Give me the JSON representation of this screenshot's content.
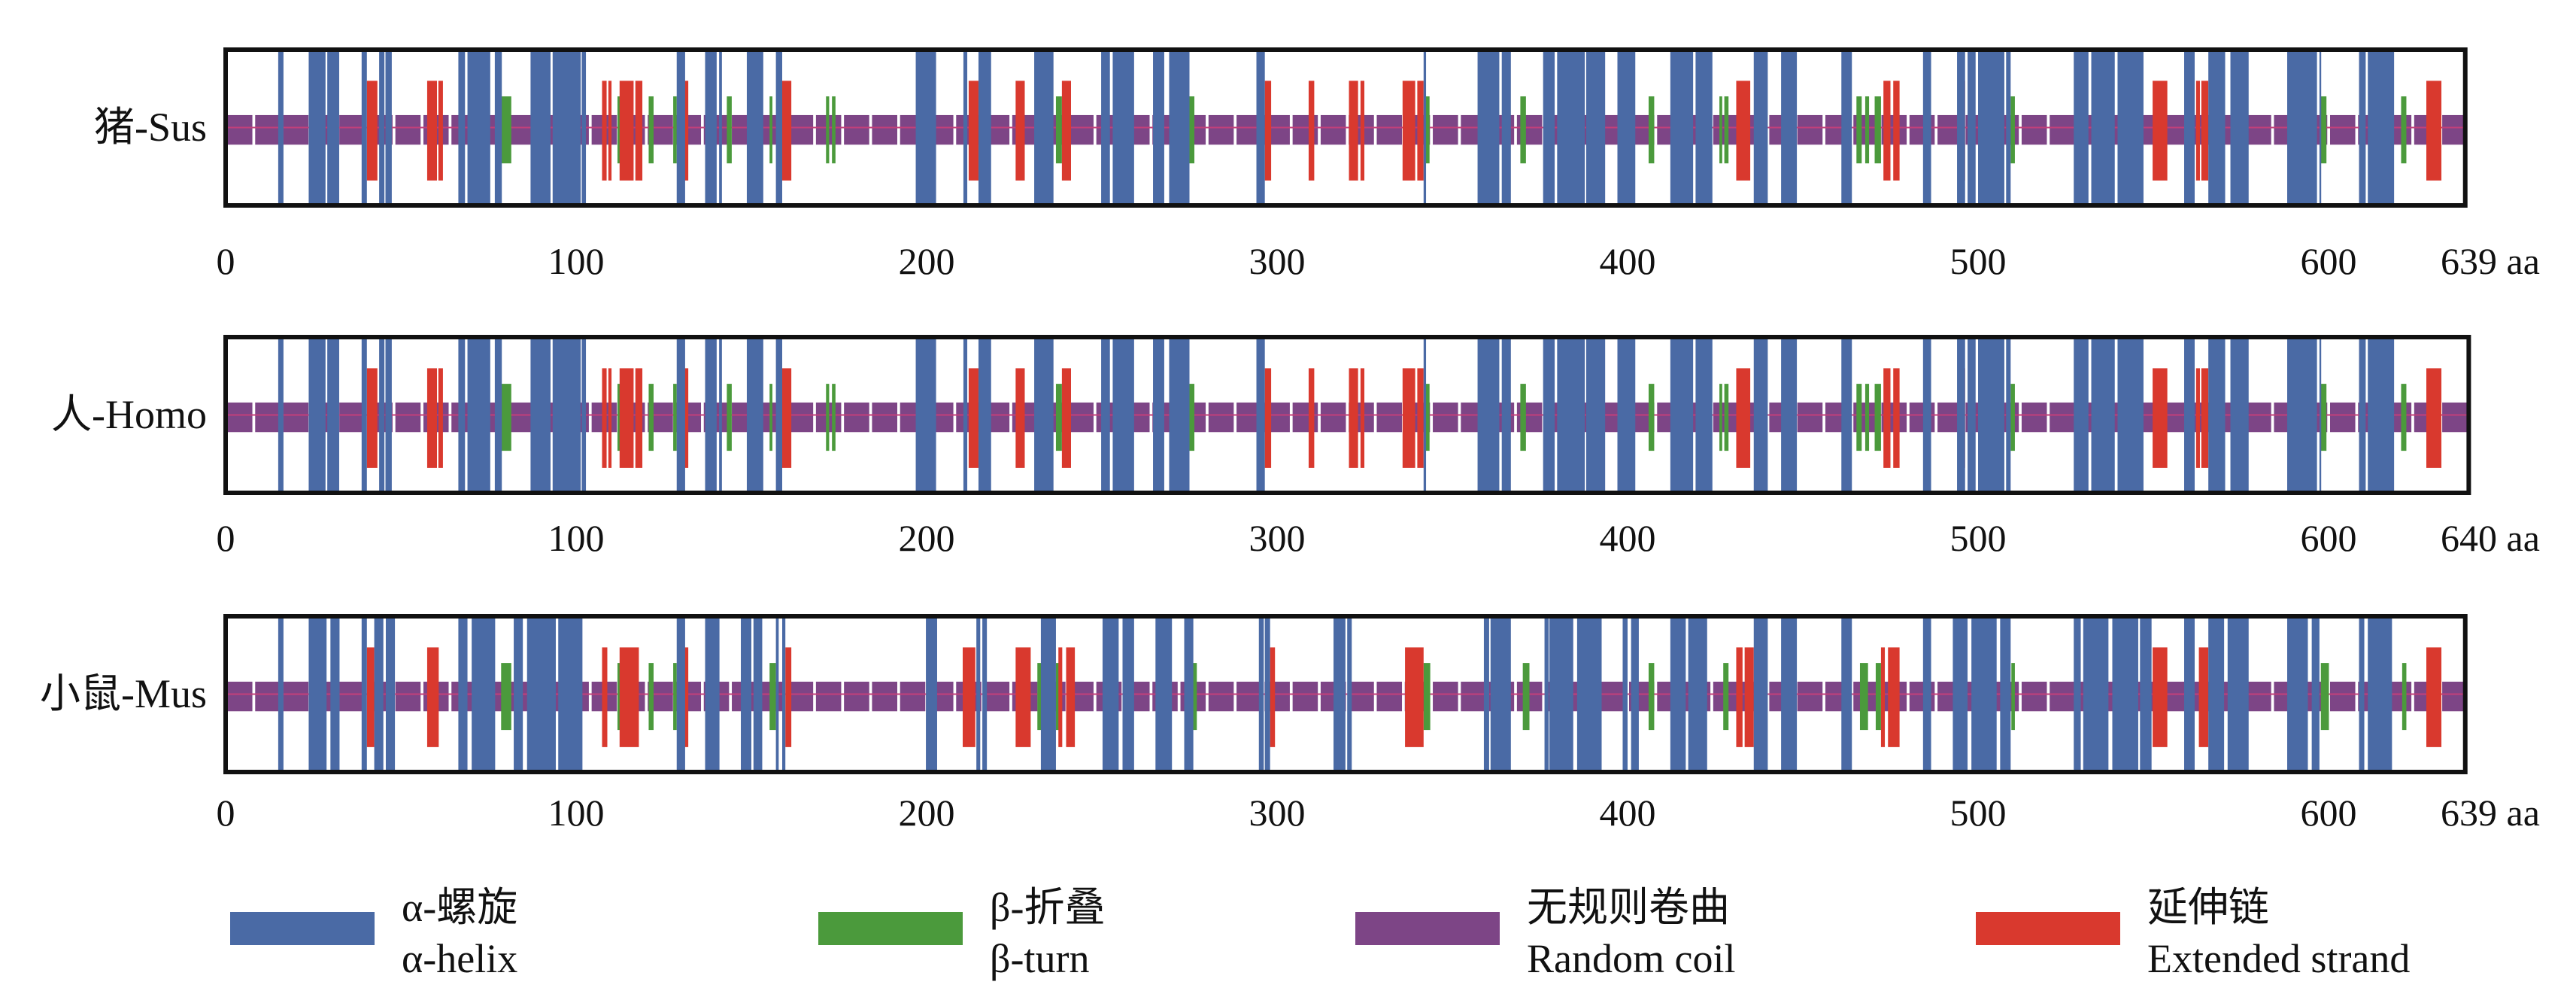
{
  "colors": {
    "helix": "#4a6aa5",
    "turn": "#4b9a3c",
    "coil": "#7d4586",
    "strand": "#d9392e",
    "centerline": "#c2407a",
    "border": "#111111"
  },
  "ticks": [
    0,
    100,
    200,
    300,
    400,
    500,
    600
  ],
  "tick_labels": [
    "0",
    "100",
    "200",
    "300",
    "400",
    "500",
    "600"
  ],
  "tracks": [
    {
      "label": "猪-Sus",
      "length": 639,
      "length_label": "639 aa",
      "helix": [
        [
          15,
          16.5
        ],
        [
          23.7,
          28.5
        ],
        [
          29,
          32.4
        ],
        [
          38.8,
          40.3
        ],
        [
          43.8,
          45.3
        ],
        [
          45.6,
          47.4
        ],
        [
          66.4,
          68.3
        ],
        [
          69,
          75.5
        ],
        [
          76.8,
          78.8
        ],
        [
          87,
          92.7
        ],
        [
          93.3,
          101.3
        ],
        [
          101.6,
          102.8
        ],
        [
          128.7,
          131.1
        ],
        [
          136.8,
          140.1
        ],
        [
          140.8,
          141.6
        ],
        [
          148.7,
          153.4
        ],
        [
          157,
          158.8
        ],
        [
          196.9,
          202.7
        ],
        [
          210.5,
          211.6
        ],
        [
          214.8,
          218.4
        ],
        [
          230.7,
          236.2
        ],
        [
          249.8,
          252.3
        ],
        [
          253.1,
          259.2
        ],
        [
          264.6,
          267.8
        ],
        [
          269.2,
          275
        ],
        [
          294.1,
          296.5
        ],
        [
          341.8,
          342.5
        ],
        [
          357.2,
          363.4
        ],
        [
          364.1,
          366.7
        ],
        [
          375.9,
          379.2
        ],
        [
          379.9,
          387.8
        ],
        [
          388.2,
          393.6
        ],
        [
          397.1,
          402.2
        ],
        [
          412.2,
          418.7
        ],
        [
          419.4,
          424.2
        ],
        [
          436,
          440
        ],
        [
          443.8,
          448.3
        ],
        [
          461,
          464
        ],
        [
          484.3,
          486.6
        ],
        [
          494,
          496.3
        ],
        [
          497,
          499.3
        ],
        [
          500,
          507.5
        ],
        [
          508,
          509.3
        ],
        [
          527.3,
          531.5
        ],
        [
          532.3,
          539
        ],
        [
          539.8,
          547.2
        ],
        [
          558.8,
          561.8
        ],
        [
          565.7,
          570.5
        ],
        [
          572,
          577.2
        ],
        [
          588.2,
          596.7
        ],
        [
          597.4,
          597.9
        ],
        [
          608.7,
          610.6
        ],
        [
          611.2,
          618.7
        ]
      ],
      "strand": [
        [
          40.3,
          43.3
        ],
        [
          57.5,
          60.3
        ],
        [
          60.7,
          62
        ],
        [
          107.4,
          108.7
        ],
        [
          109.2,
          110.1
        ],
        [
          112.4,
          116.4
        ],
        [
          116.9,
          118.9
        ],
        [
          131,
          132
        ],
        [
          158.8,
          161.4
        ],
        [
          212,
          214.8
        ],
        [
          225.4,
          228
        ],
        [
          238.6,
          241.2
        ],
        [
          296.5,
          298.3
        ],
        [
          309,
          310.6
        ],
        [
          320.5,
          323.1
        ],
        [
          323.8,
          324.9
        ],
        [
          335.8,
          339.4
        ],
        [
          340,
          341.8
        ],
        [
          431,
          435
        ],
        [
          473,
          475
        ],
        [
          475.8,
          477.6
        ],
        [
          494.3,
          496.3
        ],
        [
          549.8,
          554
        ],
        [
          562.2,
          563.3
        ],
        [
          563.7,
          565.7
        ],
        [
          627.9,
          632.2
        ]
      ],
      "turn": [
        [
          78.6,
          81.5
        ],
        [
          111.8,
          112.9
        ],
        [
          120.7,
          122.1
        ],
        [
          127.7,
          128.7
        ],
        [
          143,
          144.4
        ],
        [
          155.2,
          156
        ],
        [
          171.3,
          172.2
        ],
        [
          173,
          174
        ],
        [
          236.9,
          238.6
        ],
        [
          275,
          276.4
        ],
        [
          342,
          343.5
        ],
        [
          369.4,
          371
        ],
        [
          406,
          407.6
        ],
        [
          426.2,
          427
        ],
        [
          427.6,
          428.8
        ],
        [
          465.3,
          466.8
        ],
        [
          467.8,
          468.9
        ],
        [
          470.5,
          472.3
        ],
        [
          509.3,
          510.5
        ],
        [
          597.8,
          599.4
        ],
        [
          620.7,
          622.2
        ]
      ]
    },
    {
      "label": "人-Homo",
      "length": 640,
      "length_label": "640 aa",
      "helix": [
        [
          15,
          16.5
        ],
        [
          23.7,
          28.5
        ],
        [
          29,
          32.4
        ],
        [
          38.8,
          40.3
        ],
        [
          43.8,
          45.3
        ],
        [
          45.6,
          47.4
        ],
        [
          66.4,
          68.3
        ],
        [
          69,
          75.5
        ],
        [
          76.8,
          78.8
        ],
        [
          87,
          92.7
        ],
        [
          93.3,
          101.3
        ],
        [
          101.6,
          102.8
        ],
        [
          128.7,
          131.1
        ],
        [
          136.8,
          140.1
        ],
        [
          140.8,
          141.6
        ],
        [
          148.7,
          153.4
        ],
        [
          157,
          158.8
        ],
        [
          196.9,
          202.7
        ],
        [
          210.5,
          211.6
        ],
        [
          214.8,
          218.4
        ],
        [
          230.7,
          236.2
        ],
        [
          249.8,
          252.3
        ],
        [
          253.1,
          259.2
        ],
        [
          264.6,
          267.8
        ],
        [
          269.2,
          275
        ],
        [
          294.1,
          296.5
        ],
        [
          341.8,
          342.5
        ],
        [
          357.2,
          363.4
        ],
        [
          364.1,
          366.7
        ],
        [
          375.9,
          379.2
        ],
        [
          379.9,
          387.8
        ],
        [
          388.2,
          393.6
        ],
        [
          397.1,
          402.2
        ],
        [
          412.2,
          418.7
        ],
        [
          419.4,
          424.2
        ],
        [
          436,
          440
        ],
        [
          443.8,
          448.3
        ],
        [
          461,
          464
        ],
        [
          484.3,
          486.6
        ],
        [
          494,
          496.3
        ],
        [
          497,
          499.3
        ],
        [
          500,
          507.5
        ],
        [
          508,
          509.3
        ],
        [
          527.3,
          531.5
        ],
        [
          532.3,
          539
        ],
        [
          539.8,
          547.2
        ],
        [
          558.8,
          561.8
        ],
        [
          565.7,
          570.5
        ],
        [
          572,
          577.2
        ],
        [
          588.2,
          596.7
        ],
        [
          597.4,
          597.9
        ],
        [
          608.7,
          610.6
        ],
        [
          611.2,
          618.7
        ]
      ],
      "strand": [
        [
          40.3,
          43.3
        ],
        [
          57.5,
          60.3
        ],
        [
          60.7,
          62
        ],
        [
          107.4,
          108.7
        ],
        [
          109.2,
          110.1
        ],
        [
          112.4,
          116.4
        ],
        [
          116.9,
          118.9
        ],
        [
          131,
          132
        ],
        [
          158.8,
          161.4
        ],
        [
          212,
          214.8
        ],
        [
          225.4,
          228
        ],
        [
          238.6,
          241.2
        ],
        [
          296.5,
          298.3
        ],
        [
          309,
          310.6
        ],
        [
          320.5,
          323.1
        ],
        [
          323.8,
          324.9
        ],
        [
          335.8,
          339.4
        ],
        [
          340,
          341.8
        ],
        [
          431,
          435
        ],
        [
          473,
          475
        ],
        [
          475.8,
          477.6
        ],
        [
          494.3,
          496.3
        ],
        [
          549.8,
          554
        ],
        [
          562.2,
          563.3
        ],
        [
          563.7,
          565.7
        ],
        [
          627.9,
          632.2
        ]
      ],
      "turn": [
        [
          78.6,
          81.5
        ],
        [
          111.8,
          112.9
        ],
        [
          120.7,
          122.1
        ],
        [
          127.7,
          128.7
        ],
        [
          143,
          144.4
        ],
        [
          155.2,
          156
        ],
        [
          171.3,
          172.2
        ],
        [
          173,
          174
        ],
        [
          236.9,
          238.6
        ],
        [
          275,
          276.4
        ],
        [
          342,
          343.5
        ],
        [
          369.4,
          371
        ],
        [
          406,
          407.6
        ],
        [
          426.2,
          427
        ],
        [
          427.6,
          428.8
        ],
        [
          465.3,
          466.8
        ],
        [
          467.8,
          468.9
        ],
        [
          470.5,
          472.3
        ],
        [
          509.3,
          510.5
        ],
        [
          597.8,
          599.4
        ],
        [
          620.7,
          622.2
        ]
      ]
    },
    {
      "label": "小鼠-Mus",
      "length": 639,
      "length_label": "639 aa",
      "helix": [
        [
          15,
          16.5
        ],
        [
          23.7,
          28.8
        ],
        [
          29.9,
          32.5
        ],
        [
          38.8,
          40.3
        ],
        [
          42.4,
          45
        ],
        [
          45.7,
          48.3
        ],
        [
          66.4,
          69
        ],
        [
          70.2,
          76.9
        ],
        [
          82.2,
          84.8
        ],
        [
          86,
          94.2
        ],
        [
          94.9,
          101.8
        ],
        [
          128.7,
          131.1
        ],
        [
          136.8,
          140.9
        ],
        [
          147,
          150
        ],
        [
          150.6,
          153.1
        ],
        [
          157,
          157.8
        ],
        [
          158.8,
          159.7
        ],
        [
          199.8,
          203
        ],
        [
          214.2,
          215.3
        ],
        [
          215.9,
          217.2
        ],
        [
          232.6,
          236.9
        ],
        [
          250.2,
          254.8
        ],
        [
          255.9,
          259.2
        ],
        [
          265.3,
          270
        ],
        [
          273.5,
          276.1
        ],
        [
          294.8,
          296.2
        ],
        [
          296.5,
          298
        ],
        [
          316.1,
          319.5
        ],
        [
          320,
          321.3
        ],
        [
          359,
          360.5
        ],
        [
          360.9,
          366.7
        ],
        [
          376.3,
          377.5
        ],
        [
          377.7,
          384.5
        ],
        [
          385.6,
          392.6
        ],
        [
          398.6,
          400
        ],
        [
          401,
          403.2
        ],
        [
          412.2,
          416.6
        ],
        [
          417.3,
          422.7
        ],
        [
          436,
          440
        ],
        [
          443.8,
          448.3
        ],
        [
          461,
          464
        ],
        [
          484.3,
          486.6
        ],
        [
          492.8,
          497
        ],
        [
          498.1,
          505.3
        ],
        [
          506.3,
          509.3
        ],
        [
          527.3,
          529.3
        ],
        [
          530,
          537.2
        ],
        [
          538.3,
          545.7
        ],
        [
          546.2,
          549.5
        ],
        [
          558.8,
          561.8
        ],
        [
          565.7,
          570.2
        ],
        [
          571.2,
          577.2
        ],
        [
          588.2,
          594.1
        ],
        [
          595.2,
          597.4
        ],
        [
          608.7,
          610.2
        ],
        [
          611.2,
          618.1
        ]
      ],
      "strand": [
        [
          40.3,
          42.4
        ],
        [
          57.5,
          60.8
        ],
        [
          107.4,
          108.9
        ],
        [
          112.4,
          117.9
        ],
        [
          131,
          132
        ],
        [
          159.7,
          161.4
        ],
        [
          210.3,
          213.9
        ],
        [
          225.4,
          229.7
        ],
        [
          237.6,
          238.7
        ],
        [
          239.8,
          242.3
        ],
        [
          298,
          299.4
        ],
        [
          336.5,
          341.8
        ],
        [
          431,
          432.8
        ],
        [
          433.4,
          436
        ],
        [
          472.3,
          473.4
        ],
        [
          474.3,
          477.6
        ],
        [
          549.8,
          554
        ],
        [
          563,
          565.7
        ],
        [
          627.9,
          632.2
        ]
      ],
      "turn": [
        [
          78.6,
          81.5
        ],
        [
          111.8,
          112.9
        ],
        [
          120.7,
          122.1
        ],
        [
          127.7,
          128.7
        ],
        [
          155.2,
          157
        ],
        [
          231.6,
          233.3
        ],
        [
          236.9,
          237.9
        ],
        [
          275.7,
          277.1
        ],
        [
          341.8,
          343.7
        ],
        [
          370.1,
          372
        ],
        [
          406,
          407.6
        ],
        [
          427.3,
          428.8
        ],
        [
          466.3,
          468.6
        ],
        [
          470.8,
          472.3
        ],
        [
          509.5,
          510.5
        ],
        [
          597.8,
          600.1
        ],
        [
          621,
          622.2
        ]
      ]
    }
  ],
  "legend": [
    {
      "key": "helix",
      "zh": "α-螺旋",
      "en": "α-helix"
    },
    {
      "key": "turn",
      "zh": "β-折叠",
      "en": "β-turn"
    },
    {
      "key": "coil",
      "zh": "无规则卷曲",
      "en": "Random coil"
    },
    {
      "key": "strand",
      "zh": "延伸链",
      "en": "Extended strand"
    }
  ]
}
